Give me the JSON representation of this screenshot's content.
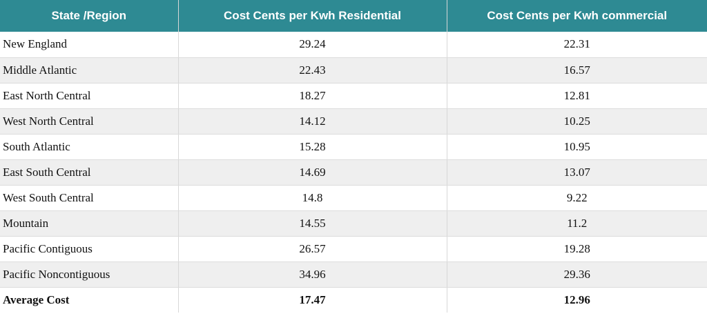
{
  "table": {
    "headers": [
      "State /Region",
      "Cost Cents per Kwh Residential",
      "Cost Cents per Kwh commercial"
    ],
    "rows": [
      {
        "region": "New England",
        "residential": "29.24",
        "commercial": "22.31"
      },
      {
        "region": "Middle Atlantic",
        "residential": "22.43",
        "commercial": "16.57"
      },
      {
        "region": "East North Central",
        "residential": "18.27",
        "commercial": "12.81"
      },
      {
        "region": "West North Central",
        "residential": "14.12",
        "commercial": "10.25"
      },
      {
        "region": "South Atlantic",
        "residential": "15.28",
        "commercial": "10.95"
      },
      {
        "region": "East South Central",
        "residential": "14.69",
        "commercial": "13.07"
      },
      {
        "region": "West South Central",
        "residential": "14.8",
        "commercial": "9.22"
      },
      {
        "region": "Mountain",
        "residential": "14.55",
        "commercial": "11.2"
      },
      {
        "region": "Pacific Contiguous",
        "residential": "26.57",
        "commercial": "19.28"
      },
      {
        "region": "Pacific Noncontiguous",
        "residential": "34.96",
        "commercial": "29.36"
      }
    ],
    "total": {
      "region": "Average Cost",
      "residential": "17.47",
      "commercial": "12.96"
    }
  },
  "colors": {
    "header_background": "#2e8a93",
    "header_text": "#ffffff",
    "row_alt_background": "#efefef"
  }
}
